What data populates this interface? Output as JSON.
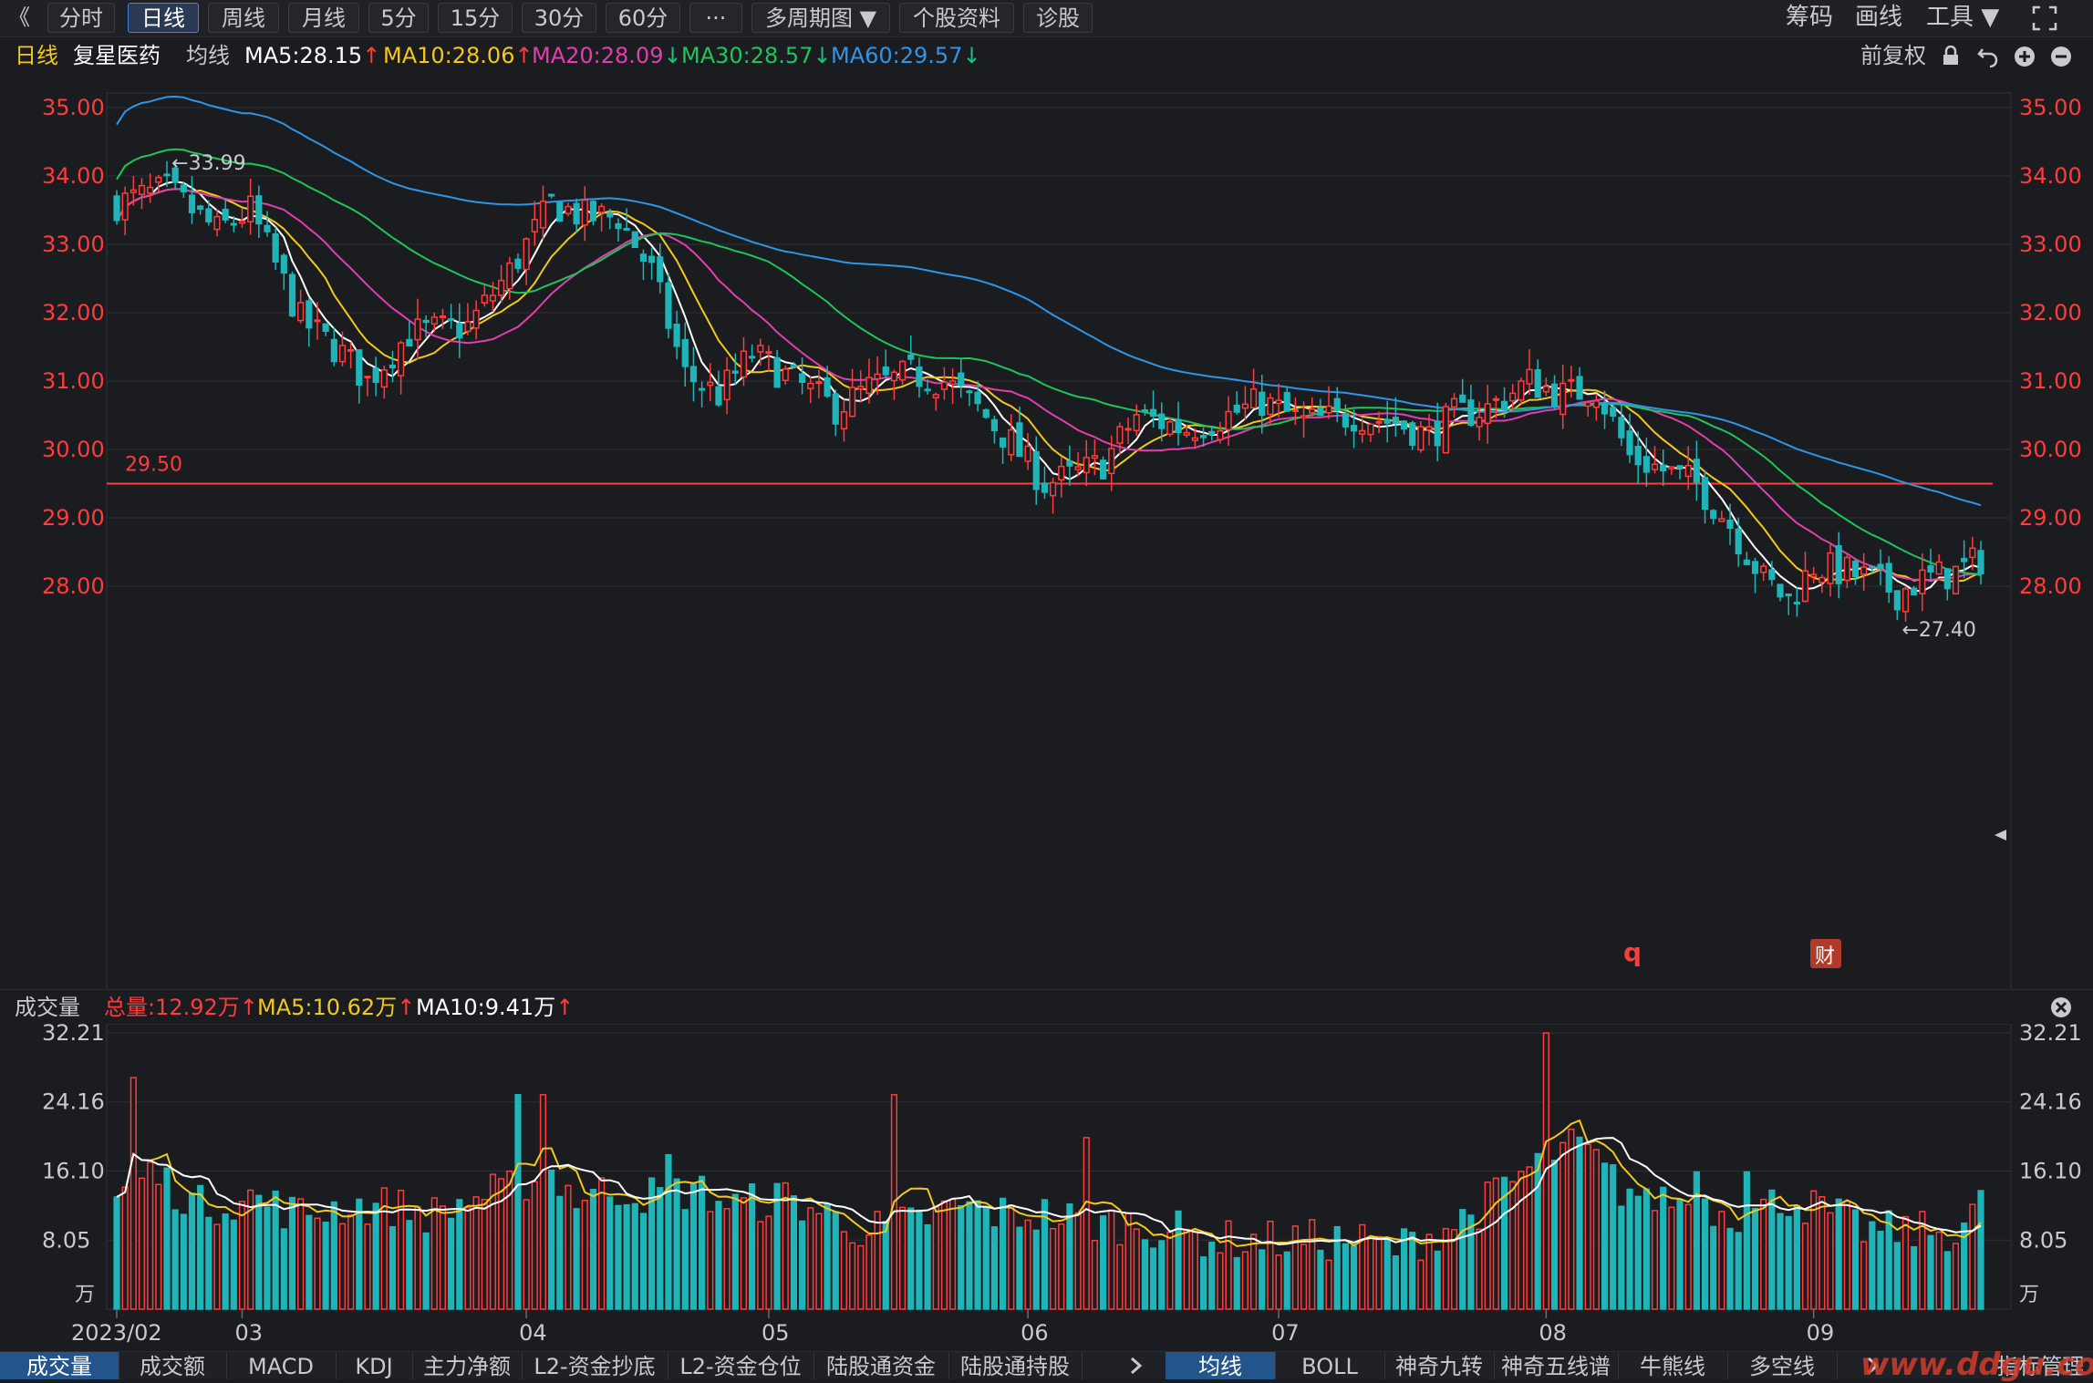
{
  "toolbar": {
    "back": "《",
    "periods": [
      "分时",
      "日线",
      "周线",
      "月线",
      "5分",
      "15分",
      "30分",
      "60分",
      "···",
      "多周期图 ▼",
      "个股资料",
      "诊股"
    ],
    "active_period": "日线",
    "right": [
      "筹码",
      "画线",
      "工具 ▼"
    ]
  },
  "header": {
    "period_label": "日线",
    "stock_name": "复星医药",
    "ma_label": "均线",
    "ma5": "MA5:28.15",
    "ma10": "MA10:28.06",
    "ma20": "MA20:28.09",
    "ma30": "MA30:28.57",
    "ma60": "MA60:29.57",
    "adjust": "前复权"
  },
  "price_chart": {
    "y_ticks": [
      "35.00",
      "34.00",
      "33.00",
      "32.00",
      "31.00",
      "30.00",
      "29.00",
      "28.00"
    ],
    "high_label": "←33.99",
    "low_label": "←27.40",
    "line_label": "29.50",
    "q_marker": "q",
    "cai_marker": "财"
  },
  "volume_panel": {
    "label": "成交量",
    "total": "总量:12.92万",
    "ma5": "MA5:10.62万",
    "ma10": "MA10:9.41万",
    "y_ticks": [
      "32.21",
      "24.16",
      "16.10",
      "8.05"
    ],
    "unit": "万"
  },
  "x_axis": [
    "2023/02",
    "03",
    "04",
    "05",
    "06",
    "07",
    "08",
    "09"
  ],
  "bottom_tabs": [
    "成交量",
    "成交额",
    "MACD",
    "KDJ",
    "主力净额",
    "L2-资金抄底",
    "L2-资金仓位",
    "陆股通资金",
    "陆股通持股"
  ],
  "bottom_tabs2": [
    "均线",
    "BOLL",
    "神奇九转",
    "神奇五线谱",
    "牛熊线",
    "多空线"
  ],
  "bottom_right": "指标管理",
  "watermark": "www.ddgu.com",
  "colors": {
    "up": "#ff3b3b",
    "down": "#1fb5b8",
    "ma5": "#ffffff",
    "ma10": "#f2c81b",
    "ma20": "#e23fae",
    "ma30": "#1fc45a",
    "ma60": "#2e95e8"
  },
  "chart_data": {
    "type": "candlestick",
    "y_range": [
      27.0,
      35.5
    ],
    "volume_range": [
      0,
      32.21
    ],
    "horizontal_line": 29.5,
    "month_labels": [
      "2023/02",
      "03",
      "04",
      "05",
      "06",
      "07",
      "08",
      "09"
    ],
    "month_start_index": [
      0,
      15,
      49,
      78,
      109,
      139,
      171,
      203
    ],
    "anchors_close": [
      [
        0,
        33.6
      ],
      [
        6,
        33.8
      ],
      [
        12,
        33.2
      ],
      [
        16,
        33.5
      ],
      [
        22,
        31.9
      ],
      [
        27,
        31.4
      ],
      [
        30,
        31.0
      ],
      [
        35,
        31.7
      ],
      [
        42,
        31.8
      ],
      [
        47,
        32.6
      ],
      [
        52,
        33.6
      ],
      [
        56,
        33.4
      ],
      [
        60,
        33.4
      ],
      [
        64,
        32.6
      ],
      [
        68,
        31.1
      ],
      [
        72,
        30.8
      ],
      [
        76,
        31.4
      ],
      [
        81,
        31.0
      ],
      [
        86,
        30.6
      ],
      [
        90,
        30.9
      ],
      [
        95,
        31.1
      ],
      [
        99,
        31.0
      ],
      [
        103,
        30.6
      ],
      [
        107,
        30.1
      ],
      [
        111,
        29.5
      ],
      [
        114,
        29.6
      ],
      [
        118,
        29.8
      ],
      [
        122,
        30.5
      ],
      [
        128,
        30.3
      ],
      [
        133,
        30.5
      ],
      [
        137,
        30.7
      ],
      [
        142,
        30.4
      ],
      [
        148,
        30.5
      ],
      [
        153,
        30.4
      ],
      [
        157,
        30.2
      ],
      [
        160,
        30.5
      ],
      [
        164,
        30.6
      ],
      [
        169,
        31.0
      ],
      [
        173,
        30.8
      ],
      [
        177,
        30.9
      ],
      [
        181,
        29.9
      ],
      [
        185,
        29.7
      ],
      [
        189,
        29.5
      ],
      [
        193,
        28.9
      ],
      [
        197,
        28.1
      ],
      [
        200,
        27.8
      ],
      [
        203,
        28.3
      ],
      [
        207,
        28.2
      ],
      [
        210,
        28.1
      ],
      [
        213,
        27.9
      ],
      [
        216,
        28.1
      ],
      [
        220,
        28.2
      ],
      [
        223,
        28.4
      ]
    ],
    "anchors_volume": [
      [
        0,
        13
      ],
      [
        4,
        16
      ],
      [
        10,
        12
      ],
      [
        16,
        13
      ],
      [
        22,
        11
      ],
      [
        27,
        12
      ],
      [
        33,
        12
      ],
      [
        38,
        11
      ],
      [
        43,
        13
      ],
      [
        48,
        14
      ],
      [
        51,
        17
      ],
      [
        55,
        13
      ],
      [
        60,
        14
      ],
      [
        65,
        13
      ],
      [
        69,
        14
      ],
      [
        74,
        12
      ],
      [
        80,
        13
      ],
      [
        85,
        11
      ],
      [
        90,
        9
      ],
      [
        95,
        10
      ],
      [
        101,
        12
      ],
      [
        106,
        11
      ],
      [
        111,
        11
      ],
      [
        116,
        10
      ],
      [
        121,
        10
      ],
      [
        127,
        9
      ],
      [
        132,
        8
      ],
      [
        138,
        8
      ],
      [
        143,
        8
      ],
      [
        148,
        8
      ],
      [
        153,
        7
      ],
      [
        158,
        9
      ],
      [
        162,
        11
      ],
      [
        166,
        14
      ],
      [
        171,
        18
      ],
      [
        175,
        19
      ],
      [
        180,
        14
      ],
      [
        185,
        13
      ],
      [
        190,
        12
      ],
      [
        195,
        11
      ],
      [
        200,
        13
      ],
      [
        205,
        11
      ],
      [
        210,
        9
      ],
      [
        215,
        9
      ],
      [
        220,
        9
      ],
      [
        223,
        12
      ]
    ],
    "volume_spikes": [
      [
        2,
        27
      ],
      [
        48,
        25
      ],
      [
        51,
        25
      ],
      [
        66,
        18
      ],
      [
        93,
        25
      ],
      [
        116,
        20
      ],
      [
        171,
        32.2
      ],
      [
        183,
        14
      ],
      [
        189,
        16
      ],
      [
        195,
        16
      ]
    ]
  }
}
